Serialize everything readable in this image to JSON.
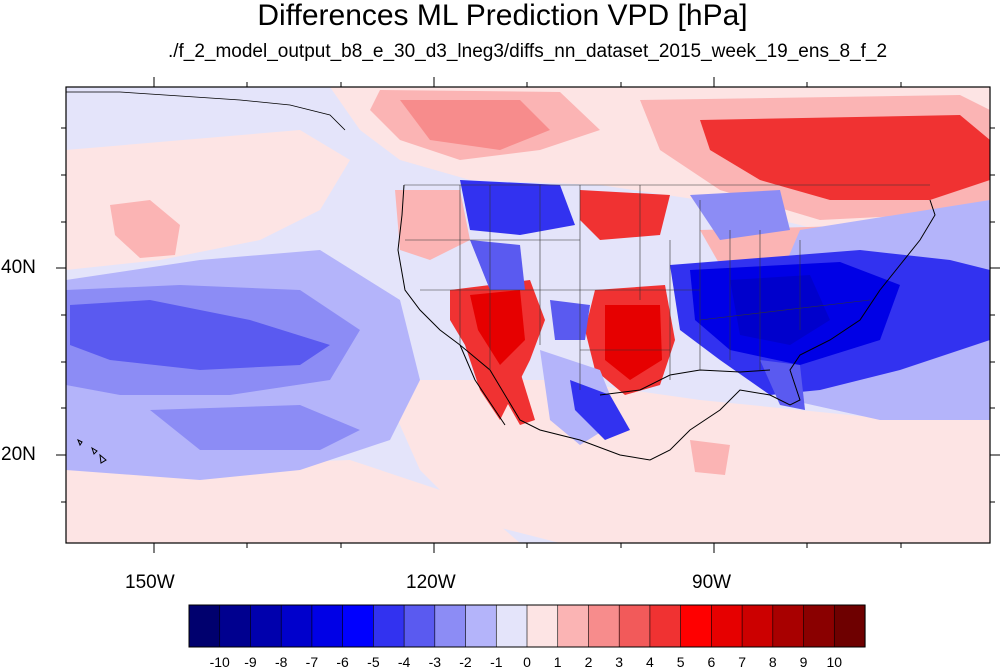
{
  "title": "Differences ML Prediction VPD [hPa]",
  "subtitle": "./f_2_model_output_b8_e_30_d3_lneg3/diffs_nn_dataset_2015_week_19_ens_8_f_2",
  "lon_labels": [
    "150W",
    "120W",
    "90W"
  ],
  "lat_labels": [
    "40N",
    "20N"
  ],
  "colorbar": {
    "labels": [
      "-10",
      "-9",
      "-8",
      "-7",
      "-6",
      "-5",
      "-4",
      "-3",
      "-2",
      "-1",
      "0",
      "1",
      "2",
      "3",
      "4",
      "5",
      "6",
      "7",
      "8",
      "9",
      "10"
    ],
    "colors": [
      "#00006e",
      "#00008f",
      "#0000ad",
      "#0000cc",
      "#0000e6",
      "#0000ff",
      "#3232f0",
      "#5a5af0",
      "#8c8cf5",
      "#b4b4fa",
      "#e4e4fa",
      "#fde4e4",
      "#fbb4b4",
      "#f78c8c",
      "#f25a5a",
      "#f03232",
      "#ff0000",
      "#e60000",
      "#cc0000",
      "#a80000",
      "#8a0000",
      "#6e0000"
    ]
  },
  "map_colors": {
    "ocean_base": "#e4e4fa",
    "strong_red": "#e60000",
    "red": "#f03232",
    "light_red": "#f78c8c",
    "pale_red": "#fbb4b4",
    "strong_blue": "#0000e6",
    "blue": "#3232f0",
    "light_blue": "#8c8cf5",
    "pale_blue": "#b4b4fa",
    "coast": "#000000"
  }
}
